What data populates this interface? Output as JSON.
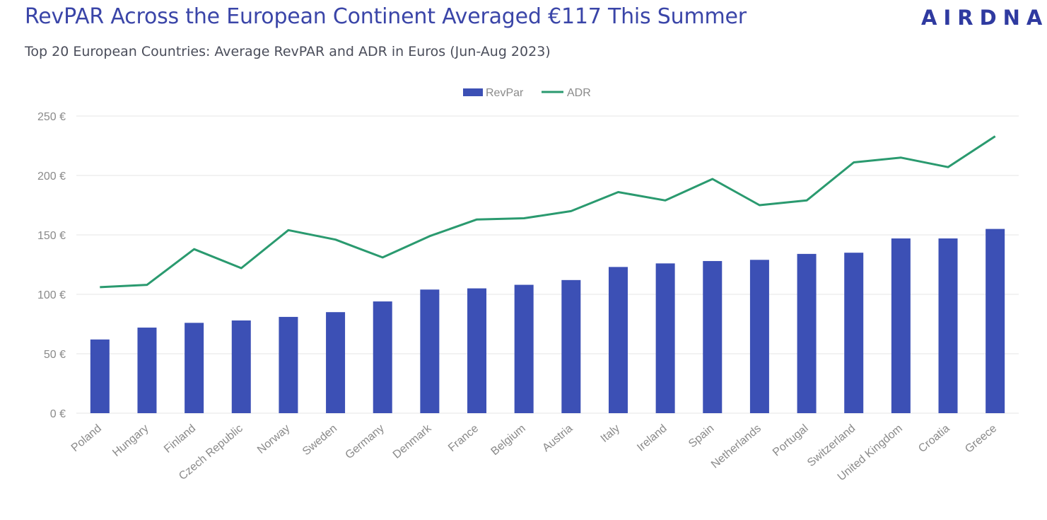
{
  "header": {
    "title": "RevPAR Across the European Continent Averaged €117 This Summer",
    "subtitle": "Top 20 European Countries: Average RevPAR and ADR in Euros (Jun-Aug 2023)",
    "logo_text": "AIRDNA"
  },
  "colors": {
    "revpar": "#3c50b5",
    "adr": "#2a9a6f",
    "title": "#3a45a8",
    "grid": "#e6e6e6"
  },
  "chart_data": {
    "type": "bar",
    "title": "RevPAR Across the European Continent Averaged €117 This Summer",
    "subtitle": "Top 20 European Countries: Average RevPAR and ADR in Euros (Jun-Aug 2023)",
    "xlabel": "",
    "ylabel": "",
    "ylim": [
      0,
      250
    ],
    "yticks": [
      0,
      50,
      100,
      150,
      200,
      250
    ],
    "ytick_labels": [
      "0 €",
      "50 €",
      "100 €",
      "150 €",
      "200 €",
      "250 €"
    ],
    "grid": true,
    "legend_position": "top-center",
    "categories": [
      "Poland",
      "Hungary",
      "Finland",
      "Czech Republic",
      "Norway",
      "Sweden",
      "Germany",
      "Denmark",
      "France",
      "Belgium",
      "Austria",
      "Italy",
      "Ireland",
      "Spain",
      "Netherlands",
      "Portugal",
      "Switzerland",
      "United Kingdom",
      "Croatia",
      "Greece"
    ],
    "series": [
      {
        "name": "RevPar",
        "type": "bar",
        "values": [
          62,
          72,
          76,
          78,
          81,
          85,
          94,
          104,
          105,
          108,
          112,
          123,
          126,
          128,
          129,
          134,
          135,
          147,
          147,
          155
        ]
      },
      {
        "name": "ADR",
        "type": "line",
        "values": [
          106,
          108,
          138,
          122,
          154,
          146,
          131,
          149,
          163,
          164,
          170,
          186,
          179,
          197,
          175,
          179,
          211,
          215,
          207,
          233
        ]
      }
    ]
  }
}
